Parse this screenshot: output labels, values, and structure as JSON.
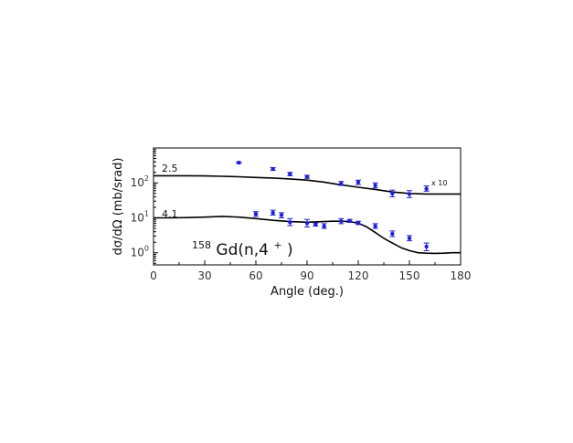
{
  "chart_data": {
    "type": "scatter",
    "title": "",
    "xlabel": "Angle (deg.)",
    "ylabel": "dσ/dΩ (mb/srad)",
    "xlim": [
      0,
      180
    ],
    "ylim": [
      0.45,
      1000
    ],
    "y_scale": "log",
    "grid": false,
    "x_ticks": [
      0,
      30,
      60,
      90,
      120,
      150,
      180
    ],
    "y_ticks": [
      {
        "base": "10",
        "exp": "0",
        "value": 1
      },
      {
        "base": "10",
        "exp": "1",
        "value": 10
      },
      {
        "base": "10",
        "exp": "2",
        "value": 100
      }
    ],
    "annotations": {
      "reaction_label": {
        "prefix": "158",
        "main": "Gd(n,4",
        "sup": "+",
        "suffix": ")"
      },
      "upper_energy": "2.5",
      "lower_energy": "4.1",
      "scale_note": "x 10"
    },
    "colors": {
      "points": "#1f1fd6",
      "curve": "#000000",
      "axes": "#000000"
    },
    "series": [
      {
        "kind": "curve",
        "x": [
          0,
          10,
          20,
          30,
          40,
          50,
          60,
          70,
          80,
          90,
          100,
          110,
          120,
          130,
          140,
          150,
          160,
          170,
          180
        ],
        "y": [
          160,
          160,
          160,
          158,
          155,
          150,
          143,
          138,
          130,
          120,
          105,
          88,
          75,
          65,
          55,
          50,
          48,
          48,
          48
        ]
      },
      {
        "kind": "points",
        "x": [
          50,
          70,
          80,
          90,
          110,
          120,
          130,
          140,
          150,
          160
        ],
        "y": [
          380,
          250,
          180,
          150,
          95,
          105,
          85,
          50,
          48,
          68
        ],
        "err_low": [
          360,
          230,
          160,
          135,
          85,
          90,
          72,
          40,
          38,
          58
        ],
        "err_high": [
          400,
          275,
          200,
          165,
          110,
          120,
          100,
          62,
          60,
          82
        ]
      },
      {
        "kind": "curve",
        "x": [
          0,
          10,
          20,
          30,
          40,
          50,
          60,
          70,
          80,
          90,
          100,
          105,
          110,
          115,
          120,
          125,
          130,
          135,
          140,
          145,
          150,
          155,
          160,
          165,
          170,
          175,
          180
        ],
        "y": [
          10,
          10,
          10.2,
          10.5,
          11,
          10.5,
          9.5,
          8.5,
          7.8,
          7.5,
          7.8,
          8,
          8,
          7.8,
          7,
          5.5,
          3.8,
          2.6,
          1.9,
          1.4,
          1.15,
          1.0,
          0.97,
          0.96,
          0.97,
          1.0,
          1.0
        ]
      },
      {
        "kind": "points",
        "x": [
          60,
          70,
          75,
          80,
          90,
          95,
          100,
          110,
          115,
          120,
          130,
          140,
          150,
          160
        ],
        "y": [
          13,
          14,
          12,
          7.5,
          7,
          6.5,
          5.8,
          8,
          8.2,
          7.2,
          5.8,
          3.5,
          2.6,
          1.5
        ],
        "err_low": [
          11,
          12,
          10,
          6,
          5.5,
          5.8,
          5,
          6.8,
          7.4,
          6.4,
          5,
          2.9,
          2.2,
          1.15
        ],
        "err_high": [
          15,
          16.5,
          14,
          9.5,
          9,
          7.2,
          6.8,
          9.5,
          9,
          8,
          6.8,
          4.2,
          3.1,
          1.9
        ]
      }
    ]
  }
}
